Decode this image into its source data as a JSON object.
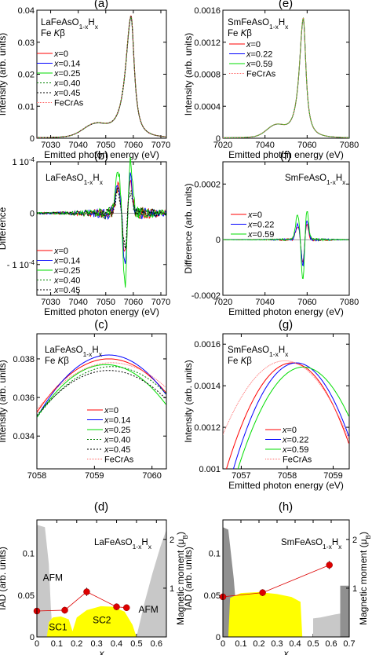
{
  "chart_data": [
    {
      "panel": "(a)",
      "type": "line",
      "title": "LaFeAsO1-xHx",
      "subtitle": "Fe Kβ",
      "xlabel": "Emitted photon energy (eV)",
      "ylabel": "Intensity (arb. units)",
      "xlim": [
        7025,
        7072
      ],
      "ylim": [
        0,
        0.04
      ],
      "xticks": [
        7030,
        7040,
        7050,
        7060,
        7070
      ],
      "yticks": [
        0,
        0.01,
        0.02,
        0.03,
        0.04
      ],
      "ytick_labels": [
        "0",
        "0.01",
        "0.02",
        "0.03",
        "0.04"
      ],
      "peak": {
        "center": 7059.2,
        "height": 0.038,
        "hw_left": 2.4,
        "hw_right": 1.4,
        "shoulder_center": 7046,
        "shoulder_height": 0.0035,
        "shoulder_width": 6
      },
      "series": [
        {
          "name": "x=0",
          "color": "#ff0000",
          "dash": ""
        },
        {
          "name": "x=0.14",
          "color": "#0000ff",
          "dash": ""
        },
        {
          "name": "x=0.25",
          "color": "#00dd00",
          "dash": ""
        },
        {
          "name": "x=0.40",
          "color": "#008000",
          "dash": "2,2"
        },
        {
          "name": "x=0.45",
          "color": "#000000",
          "dash": "2,2"
        },
        {
          "name": "FeCrAs",
          "color": "#ff6666",
          "dash": "1,1"
        }
      ]
    },
    {
      "panel": "(b)",
      "type": "line",
      "title": "LaFeAsO1-xHx",
      "xlabel": "Emitted photon energy (eV)",
      "ylabel": "Difference",
      "xlim": [
        7025,
        7072
      ],
      "ylim": [
        -0.00016,
        0.0001
      ],
      "xticks": [
        7030,
        7040,
        7050,
        7060,
        7070
      ],
      "yticks": [
        0.0001,
        0,
        -0.0001
      ],
      "ytick_labels": [
        "1 10-4",
        "0",
        "- 1 10-4"
      ],
      "series": [
        {
          "name": "x=0",
          "color": "#ff0000",
          "dash": ""
        },
        {
          "name": "x=0.14",
          "color": "#0000ff",
          "dash": ""
        },
        {
          "name": "x=0.25",
          "color": "#00dd00",
          "dash": ""
        },
        {
          "name": "x=0.40",
          "color": "#008000",
          "dash": "2,2"
        },
        {
          "name": "x=0.45",
          "color": "#000000",
          "dash": "2,2"
        }
      ]
    },
    {
      "panel": "(c)",
      "type": "line",
      "title": "LaFeAsO1-xHx",
      "subtitle": "Fe Kβ",
      "xlabel": "",
      "ylabel": "Intensity (arb. units)",
      "xlim": [
        7058,
        7060.25
      ],
      "ylim": [
        0.0323,
        0.0393
      ],
      "xticks": [
        7058,
        7059,
        7060
      ],
      "yticks": [
        0.034,
        0.036,
        0.038
      ],
      "ytick_labels": [
        "0.034",
        "0.036",
        "0.038"
      ],
      "series": [
        {
          "name": "x=0",
          "color": "#ff0000",
          "dash": "",
          "x0": 7059.25,
          "peak": 0.038,
          "w": 1.7
        },
        {
          "name": "x=0.14",
          "color": "#0000ff",
          "dash": "",
          "x0": 7059.25,
          "peak": 0.0382,
          "w": 1.6
        },
        {
          "name": "x=0.25",
          "color": "#00dd00",
          "dash": "",
          "x0": 7059.2,
          "peak": 0.0377,
          "w": 1.6
        },
        {
          "name": "x=0.40",
          "color": "#008000",
          "dash": "2,2",
          "x0": 7059.3,
          "peak": 0.0376,
          "w": 1.75
        },
        {
          "name": "x=0.45",
          "color": "#000000",
          "dash": "2,2",
          "x0": 7059.25,
          "peak": 0.0374,
          "w": 1.75
        },
        {
          "name": "FeCrAs",
          "color": "#ff6666",
          "dash": "1,1",
          "x0": 7059.3,
          "peak": 0.0378,
          "w": 1.85
        }
      ]
    },
    {
      "panel": "(d)",
      "type": "line",
      "title": "LaFeAsO1-xHx",
      "xlabel": "x",
      "ylabel": "IAD (arb. units)",
      "y2label": "Magnetic moment (μB)",
      "xlim": [
        0,
        0.65
      ],
      "ylim": [
        0,
        0.14
      ],
      "y2lim": [
        0,
        2.4
      ],
      "xticks": [
        0,
        0.1,
        0.2,
        0.3,
        0.4,
        0.5,
        0.6
      ],
      "yticks": [
        0,
        0.05,
        0.1
      ],
      "y2ticks": [
        1,
        2
      ],
      "x": [
        0.0,
        0.14,
        0.25,
        0.4,
        0.45
      ],
      "iad": [
        0.031,
        0.032,
        0.054,
        0.036,
        0.035
      ],
      "iad_err": [
        0.004,
        0.004,
        0.005,
        0.004,
        0.004
      ],
      "regions": [
        {
          "label": "AFM"
        },
        {
          "label": "SC1"
        },
        {
          "label": "SC2"
        },
        {
          "label": "AFM"
        }
      ]
    },
    {
      "panel": "(e)",
      "type": "line",
      "title": "SmFeAsO1-xHx",
      "subtitle": "Fe Kβ",
      "xlabel": "Emitted photon energy (eV)",
      "ylabel": "Intensity (arb. units)",
      "xlim": [
        7020,
        7080
      ],
      "ylim": [
        0,
        0.0016
      ],
      "xticks": [
        7020,
        7040,
        7060,
        7080
      ],
      "yticks": [
        0,
        0.0004,
        0.0008,
        0.0012,
        0.0016
      ],
      "ytick_labels": [
        "0",
        "0.0004",
        "0.0008",
        "0.0012",
        "0.0016"
      ],
      "peak": {
        "center": 7058.2,
        "height": 0.0015,
        "hw_left": 2.3,
        "hw_right": 1.5,
        "shoulder_center": 7045,
        "shoulder_height": 0.00013,
        "shoulder_width": 6
      },
      "series": [
        {
          "name": "x=0",
          "color": "#ff0000",
          "dash": ""
        },
        {
          "name": "x=0.22",
          "color": "#0000ff",
          "dash": ""
        },
        {
          "name": "x=0.59",
          "color": "#00dd00",
          "dash": ""
        },
        {
          "name": "FeCrAs",
          "color": "#ff6666",
          "dash": "1,1"
        }
      ]
    },
    {
      "panel": "(f)",
      "type": "line",
      "title": "SmFeAsO1-xHx",
      "xlabel": "Emitted photon energy (eV)",
      "ylabel": "Difference (arb. units)",
      "xlim": [
        7020,
        7080
      ],
      "ylim": [
        -0.0002,
        0.00028
      ],
      "xticks": [
        7020,
        7040,
        7060,
        7080
      ],
      "yticks": [
        -0.0002,
        0,
        0.0002
      ],
      "ytick_labels": [
        "-0.0002",
        "0",
        "0.0002"
      ],
      "series": [
        {
          "name": "x=0",
          "color": "#ff0000",
          "dash": ""
        },
        {
          "name": "x=0.22",
          "color": "#0000ff",
          "dash": ""
        },
        {
          "name": "x=0.59",
          "color": "#00dd00",
          "dash": ""
        }
      ]
    },
    {
      "panel": "(g)",
      "type": "line",
      "title": "SmFeAsO1-xHx",
      "subtitle": "Fe Kβ",
      "xlabel": "Emitted photon energy (eV)",
      "ylabel": "Intensity (arb. units)",
      "xlim": [
        7056.6,
        7059.35
      ],
      "ylim": [
        0.001,
        0.00165
      ],
      "xticks": [
        7057,
        7058,
        7059
      ],
      "yticks": [
        0.001,
        0.0012,
        0.0014,
        0.0016
      ],
      "ytick_labels": [
        "0.001",
        "0.0012",
        "0.0014",
        "0.0016"
      ],
      "series": [
        {
          "name": "x=0",
          "color": "#ff0000",
          "dash": "",
          "x0": 7058.1,
          "peak": 0.00151,
          "w": 1.35
        },
        {
          "name": "x=0.22",
          "color": "#0000ff",
          "dash": "",
          "x0": 7058.2,
          "peak": 0.00151,
          "w": 1.3
        },
        {
          "name": "x=0.59",
          "color": "#00dd00",
          "dash": "",
          "x0": 7058.35,
          "peak": 0.00149,
          "w": 1.35
        },
        {
          "name": "FeCrAs",
          "color": "#ff6666",
          "dash": "1,1",
          "x0": 7057.95,
          "peak": 0.00152,
          "w": 1.55
        }
      ]
    },
    {
      "panel": "(h)",
      "type": "line",
      "title": "SmFeAsO1-xHx",
      "xlabel": "x",
      "ylabel": "IAD (arb. units)",
      "y2label": "Magnetic moment (μB)",
      "xlim": [
        0,
        0.7
      ],
      "ylim": [
        0,
        0.14
      ],
      "y2lim": [
        0,
        2.4
      ],
      "xticks": [
        0,
        0.1,
        0.2,
        0.3,
        0.4,
        0.5,
        0.6,
        0.7
      ],
      "yticks": [
        0,
        0.05,
        0.1
      ],
      "y2ticks": [
        1,
        2
      ],
      "x": [
        0.0,
        0.22,
        0.59
      ],
      "iad": [
        0.048,
        0.053,
        0.086
      ],
      "iad_err": [
        0.004,
        0.004,
        0.005
      ]
    }
  ],
  "colors": {
    "sc_fill": "#ffff00",
    "afm_fill": "#c8c8c8",
    "afm_fill_dark": "#909090",
    "iad_marker": "#dd0000"
  }
}
